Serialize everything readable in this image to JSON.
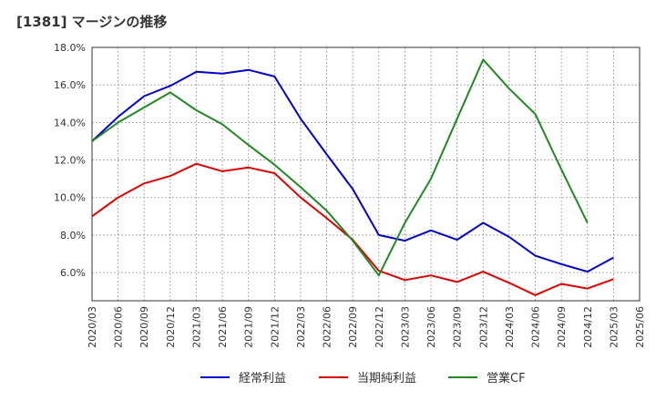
{
  "title": "[1381]  マージンの推移",
  "chart_data": {
    "type": "line",
    "title": "[1381]  マージンの推移",
    "xlabel": "",
    "ylabel": "",
    "x": [
      "2020/03",
      "2020/06",
      "2020/09",
      "2020/12",
      "2021/03",
      "2021/06",
      "2021/09",
      "2021/12",
      "2022/03",
      "2022/06",
      "2022/09",
      "2022/12",
      "2023/03",
      "2023/06",
      "2023/09",
      "2023/12",
      "2024/03",
      "2024/06",
      "2024/09",
      "2024/12",
      "2025/03",
      "2025/06"
    ],
    "yticks": [
      "6.0%",
      "8.0%",
      "10.0%",
      "12.0%",
      "14.0%",
      "16.0%",
      "18.0%"
    ],
    "ylim": [
      4.5,
      18.0
    ],
    "grid": true,
    "legend_position": "bottom",
    "series": [
      {
        "name": "経常利益",
        "color": "#0000cc",
        "values": [
          13.0,
          14.3,
          15.4,
          15.95,
          16.7,
          16.6,
          16.8,
          16.45,
          14.2,
          12.3,
          10.45,
          8.0,
          7.7,
          8.25,
          7.75,
          8.65,
          7.9,
          6.9,
          6.45,
          6.05,
          6.8,
          null
        ]
      },
      {
        "name": "当期純利益",
        "color": "#dd0000",
        "values": [
          9.0,
          10.0,
          10.75,
          11.15,
          11.8,
          11.4,
          11.6,
          11.3,
          10.0,
          8.9,
          7.75,
          6.1,
          5.6,
          5.85,
          5.5,
          6.05,
          5.45,
          4.8,
          5.4,
          5.15,
          5.65,
          null
        ]
      },
      {
        "name": "営業CF",
        "color": "#228822",
        "values": [
          13.0,
          14.0,
          14.8,
          15.6,
          14.65,
          13.9,
          12.8,
          11.75,
          10.55,
          9.3,
          7.7,
          5.85,
          8.65,
          11.0,
          14.2,
          17.35,
          15.8,
          14.45,
          11.5,
          8.65,
          null,
          null
        ]
      }
    ]
  }
}
